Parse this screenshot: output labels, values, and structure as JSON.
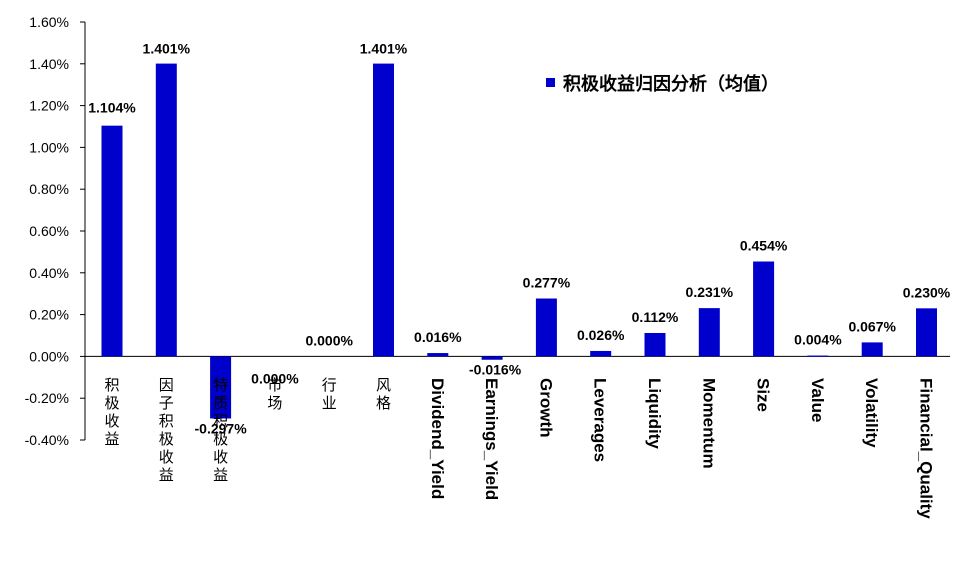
{
  "chart_data": {
    "type": "bar",
    "categories": [
      "积极收益",
      "因子积极收益",
      "特质积极收益",
      "市场",
      "行业",
      "风格",
      "Dividend_Yield",
      "Earnings_Yield",
      "Growth",
      "Leverages",
      "Liquidity",
      "Momentum",
      "Size",
      "Value",
      "Volatility",
      "Financial_Quality"
    ],
    "series": [
      {
        "name": "积极收益归因分析（均值）",
        "values": [
          1.104,
          1.401,
          -0.297,
          0.0,
          0.0,
          1.401,
          0.016,
          -0.016,
          0.277,
          0.026,
          0.112,
          0.231,
          0.454,
          0.004,
          0.067,
          0.23
        ],
        "labels": [
          "1.104%",
          "1.401%",
          "-0.297%",
          "0.000%",
          "0.000%",
          "1.401%",
          "0.016%",
          "-0.016%",
          "0.277%",
          "0.026%",
          "0.112%",
          "0.231%",
          "0.454%",
          "0.004%",
          "0.067%",
          "0.230%"
        ],
        "color": "#0000CC"
      }
    ],
    "ylim": [
      -0.4,
      1.6
    ],
    "yticks": [
      -0.4,
      -0.2,
      0.0,
      0.2,
      0.4,
      0.6,
      0.8,
      1.0,
      1.2,
      1.4,
      1.6
    ],
    "ytick_labels": [
      "-0.40%",
      "-0.20%",
      "0.00%",
      "0.20%",
      "0.40%",
      "0.60%",
      "0.80%",
      "1.00%",
      "1.20%",
      "1.40%",
      "1.60%"
    ],
    "title": "",
    "xlabel": "",
    "ylabel": "",
    "grid": false,
    "legend": "top-right"
  }
}
